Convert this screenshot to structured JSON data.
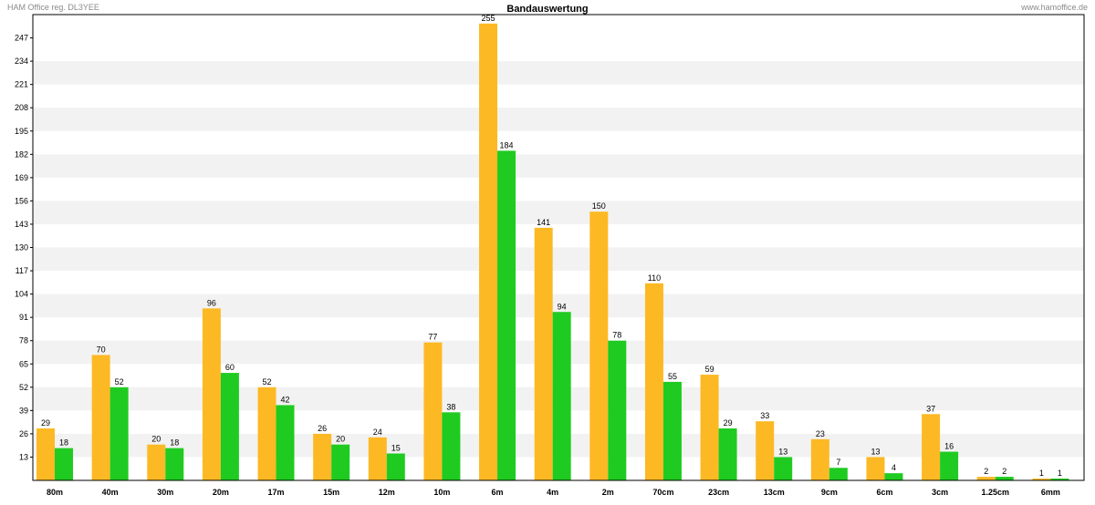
{
  "header": {
    "left_text": "HAM Office reg. DL3YEE",
    "right_text": "www.hamoffice.de"
  },
  "chart_data": {
    "type": "bar",
    "title": "Bandauswertung",
    "xlabel": "",
    "ylabel": "",
    "ylim": [
      0,
      260
    ],
    "yticks": [
      13,
      26,
      39,
      52,
      65,
      78,
      91,
      104,
      117,
      130,
      143,
      156,
      169,
      182,
      195,
      208,
      221,
      234,
      247
    ],
    "grid": "alternating horizontal bands",
    "legend": "none",
    "categories": [
      "80m",
      "40m",
      "30m",
      "20m",
      "17m",
      "15m",
      "12m",
      "10m",
      "6m",
      "4m",
      "2m",
      "70cm",
      "23cm",
      "13cm",
      "9cm",
      "6cm",
      "3cm",
      "1.25cm",
      "6mm"
    ],
    "series": [
      {
        "color": "#FDB924",
        "values": [
          29,
          70,
          20,
          96,
          52,
          26,
          24,
          77,
          255,
          141,
          150,
          110,
          59,
          33,
          23,
          13,
          37,
          2,
          1
        ]
      },
      {
        "color": "#1FCB21",
        "values": [
          18,
          52,
          18,
          60,
          42,
          20,
          15,
          38,
          184,
          94,
          78,
          55,
          29,
          13,
          7,
          4,
          16,
          2,
          1
        ]
      }
    ]
  }
}
